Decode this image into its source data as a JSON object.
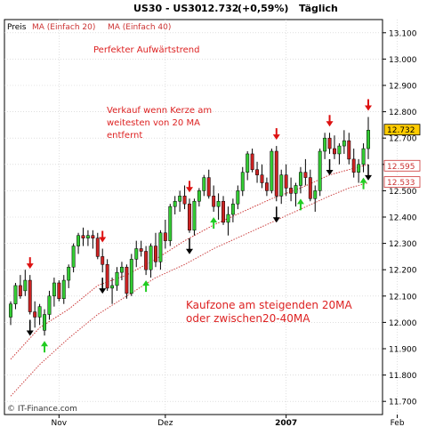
{
  "header": {
    "symbol": "US30 - US30",
    "last": "12.732",
    "change": "(+0,59%)",
    "period": "Täglich"
  },
  "legend": {
    "price_label": "Preis",
    "ma20_label": "MA (Einfach 20)",
    "ma40_label": "MA (Einfach 40)"
  },
  "annotations": {
    "trend": "Perfekter Aufwärtstrend",
    "sell_line1": "Verkauf wenn Kerze am",
    "sell_line2": "weitesten von 20 MA",
    "sell_line3": "entfernt",
    "buy_line1": "Kaufzone am steigenden 20MA",
    "buy_line2": "oder zwischen20-40MA"
  },
  "watermark": "© IT-Finance.com",
  "colors": {
    "up": "#33cc33",
    "down": "#cc2222",
    "ma20": "#cc3333",
    "ma40": "#cc4444",
    "grid": "#cccccc",
    "last_badge": "#ffcc00",
    "sell_arrow": "#dd1111",
    "buy_arrow": "#22cc22",
    "text_red": "#dd2222"
  },
  "chart_data": {
    "type": "candlestick",
    "ylim": [
      11.65,
      13.15
    ],
    "yticks": [
      "11.700",
      "11.800",
      "11.900",
      "12.000",
      "12.100",
      "12.200",
      "12.300",
      "12.400",
      "12.500",
      "12.600",
      "12.700",
      "12.800",
      "12.900",
      "13.000",
      "13.100"
    ],
    "xticks": [
      "Nov",
      "Dez",
      "2007",
      "Feb"
    ],
    "xtick_index": [
      10,
      32,
      57,
      80
    ],
    "grid": true,
    "price_badges": [
      {
        "label": "12.732",
        "value": 12.732,
        "style": "last"
      },
      {
        "label": "12.595",
        "value": 12.595,
        "style": "ma20"
      },
      {
        "label": "12.533",
        "value": 12.533,
        "style": "ma40"
      }
    ],
    "candles": [
      [
        12.02,
        12.08,
        11.99,
        12.07
      ],
      [
        12.07,
        12.15,
        12.05,
        12.14
      ],
      [
        12.14,
        12.18,
        12.09,
        12.1
      ],
      [
        12.12,
        12.2,
        12.1,
        12.16
      ],
      [
        12.16,
        12.18,
        12.03,
        12.04
      ],
      [
        12.04,
        12.08,
        11.98,
        12.02
      ],
      [
        12.02,
        12.07,
        11.99,
        12.06
      ],
      [
        11.97,
        12.05,
        11.95,
        12.03
      ],
      [
        12.03,
        12.12,
        12.01,
        12.1
      ],
      [
        12.1,
        12.17,
        12.06,
        12.15
      ],
      [
        12.15,
        12.16,
        12.08,
        12.09
      ],
      [
        12.09,
        12.18,
        12.07,
        12.16
      ],
      [
        12.16,
        12.22,
        12.13,
        12.21
      ],
      [
        12.21,
        12.3,
        12.19,
        12.29
      ],
      [
        12.29,
        12.34,
        12.26,
        12.33
      ],
      [
        12.33,
        12.36,
        12.29,
        12.32
      ],
      [
        12.32,
        12.35,
        12.29,
        12.33
      ],
      [
        12.33,
        12.35,
        12.28,
        12.32
      ],
      [
        12.32,
        12.34,
        12.24,
        12.25
      ],
      [
        12.25,
        12.28,
        12.19,
        12.22
      ],
      [
        12.22,
        12.24,
        12.12,
        12.13
      ],
      [
        12.13,
        12.17,
        12.07,
        12.14
      ],
      [
        12.14,
        12.21,
        12.12,
        12.19
      ],
      [
        12.19,
        12.23,
        12.16,
        12.21
      ],
      [
        12.21,
        12.22,
        12.09,
        12.11
      ],
      [
        12.11,
        12.26,
        12.1,
        12.24
      ],
      [
        12.24,
        12.31,
        12.21,
        12.28
      ],
      [
        12.28,
        12.31,
        12.25,
        12.27
      ],
      [
        12.27,
        12.29,
        12.18,
        12.2
      ],
      [
        12.2,
        12.3,
        12.17,
        12.29
      ],
      [
        12.29,
        12.34,
        12.21,
        12.23
      ],
      [
        12.23,
        12.35,
        12.2,
        12.34
      ],
      [
        12.34,
        12.39,
        12.28,
        12.31
      ],
      [
        12.31,
        12.45,
        12.29,
        12.44
      ],
      [
        12.44,
        12.48,
        12.41,
        12.46
      ],
      [
        12.46,
        12.5,
        12.42,
        12.48
      ],
      [
        12.48,
        12.52,
        12.43,
        12.45
      ],
      [
        12.45,
        12.47,
        12.34,
        12.35
      ],
      [
        12.35,
        12.47,
        12.33,
        12.46
      ],
      [
        12.46,
        12.51,
        12.44,
        12.5
      ],
      [
        12.5,
        12.56,
        12.48,
        12.55
      ],
      [
        12.55,
        12.58,
        12.47,
        12.48
      ],
      [
        12.48,
        12.52,
        12.42,
        12.44
      ],
      [
        12.44,
        12.49,
        12.39,
        12.46
      ],
      [
        12.46,
        12.48,
        12.37,
        12.38
      ],
      [
        12.38,
        12.44,
        12.33,
        12.41
      ],
      [
        12.41,
        12.47,
        12.38,
        12.45
      ],
      [
        12.45,
        12.52,
        12.43,
        12.5
      ],
      [
        12.5,
        12.59,
        12.48,
        12.57
      ],
      [
        12.57,
        12.65,
        12.54,
        12.64
      ],
      [
        12.64,
        12.66,
        12.57,
        12.58
      ],
      [
        12.58,
        12.61,
        12.53,
        12.56
      ],
      [
        12.56,
        12.6,
        12.51,
        12.53
      ],
      [
        12.53,
        12.55,
        12.48,
        12.5
      ],
      [
        12.5,
        12.66,
        12.49,
        12.65
      ],
      [
        12.65,
        12.67,
        12.46,
        12.48
      ],
      [
        12.48,
        12.58,
        12.45,
        12.56
      ],
      [
        12.56,
        12.6,
        12.48,
        12.51
      ],
      [
        12.51,
        12.55,
        12.46,
        12.49
      ],
      [
        12.49,
        12.53,
        12.44,
        12.52
      ],
      [
        12.52,
        12.59,
        12.49,
        12.57
      ],
      [
        12.57,
        12.62,
        12.52,
        12.55
      ],
      [
        12.55,
        12.58,
        12.46,
        12.47
      ],
      [
        12.47,
        12.52,
        12.42,
        12.5
      ],
      [
        12.5,
        12.66,
        12.48,
        12.65
      ],
      [
        12.65,
        12.72,
        12.62,
        12.7
      ],
      [
        12.7,
        12.72,
        12.64,
        12.66
      ],
      [
        12.66,
        12.71,
        12.62,
        12.64
      ],
      [
        12.64,
        12.68,
        12.6,
        12.67
      ],
      [
        12.67,
        12.73,
        12.64,
        12.69
      ],
      [
        12.69,
        12.72,
        12.6,
        12.62
      ],
      [
        12.62,
        12.66,
        12.55,
        12.57
      ],
      [
        12.57,
        12.62,
        12.53,
        12.6
      ],
      [
        12.6,
        12.68,
        12.57,
        12.66
      ],
      [
        12.66,
        12.78,
        12.62,
        12.73
      ]
    ],
    "ma20": [
      [
        0,
        11.86
      ],
      [
        6,
        11.98
      ],
      [
        12,
        12.05
      ],
      [
        18,
        12.14
      ],
      [
        24,
        12.18
      ],
      [
        30,
        12.24
      ],
      [
        36,
        12.31
      ],
      [
        42,
        12.37
      ],
      [
        48,
        12.42
      ],
      [
        54,
        12.47
      ],
      [
        60,
        12.51
      ],
      [
        66,
        12.56
      ],
      [
        70,
        12.58
      ],
      [
        74,
        12.6
      ]
    ],
    "ma40": [
      [
        0,
        11.72
      ],
      [
        6,
        11.84
      ],
      [
        12,
        11.94
      ],
      [
        18,
        12.03
      ],
      [
        24,
        12.1
      ],
      [
        30,
        12.17
      ],
      [
        36,
        12.22
      ],
      [
        42,
        12.28
      ],
      [
        48,
        12.33
      ],
      [
        54,
        12.38
      ],
      [
        60,
        12.43
      ],
      [
        66,
        12.48
      ],
      [
        70,
        12.51
      ],
      [
        74,
        12.53
      ]
    ],
    "sell_arrows": [
      4,
      19,
      37,
      55,
      66,
      74
    ],
    "exit_arrows": [
      4,
      19,
      37,
      55,
      66,
      74
    ],
    "buy_arrows": [
      7,
      28,
      42,
      60,
      73
    ]
  }
}
